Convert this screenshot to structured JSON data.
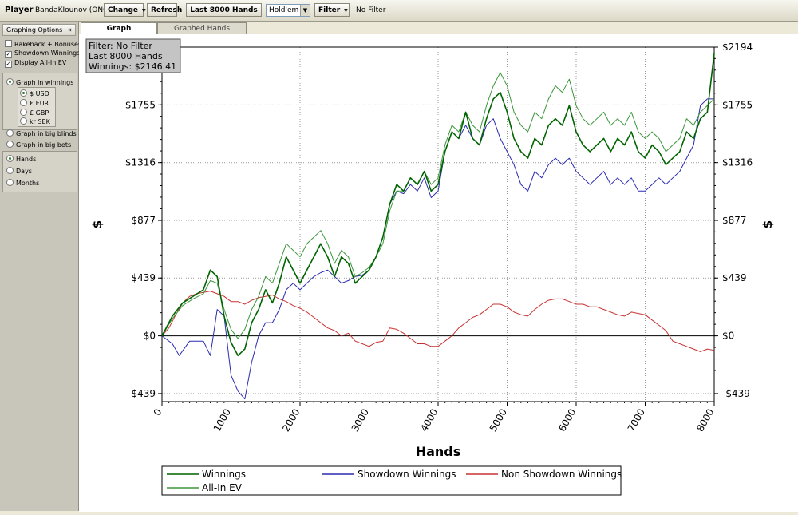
{
  "toolbar": {
    "player_label": "Player",
    "player_name": "BandaKIounov (ONG)",
    "change_label": "Change",
    "refresh_label": "Refresh",
    "hands_label": "Last 8000 Hands",
    "game_value": "Hold'em",
    "filter_label": "Filter",
    "filter_status": "No Filter"
  },
  "sidebar": {
    "header": "Graphing Options",
    "collapse_glyph": "«",
    "checks": [
      {
        "label": "Rakeback + Bonuses",
        "checked": false
      },
      {
        "label": "Showdown Winnings",
        "checked": true
      },
      {
        "label": "Display All-In EV",
        "checked": true
      }
    ],
    "graph_in_winnings": "Graph in winnings",
    "currencies": [
      {
        "label": "$ USD",
        "selected": true
      },
      {
        "label": "€ EUR",
        "selected": false
      },
      {
        "label": "£ GBP",
        "selected": false
      },
      {
        "label": "kr SEK",
        "selected": false
      }
    ],
    "graph_in_big_blinds": "Graph in big blinds",
    "graph_in_big_bets": "Graph in big bets",
    "x_units": [
      {
        "label": "Hands",
        "selected": true
      },
      {
        "label": "Days",
        "selected": false
      },
      {
        "label": "Months",
        "selected": false
      }
    ]
  },
  "tabs": [
    {
      "label": "Graph",
      "active": true
    },
    {
      "label": "Graphed Hands",
      "active": false
    }
  ],
  "chart_data": {
    "type": "line",
    "info_box": [
      "Filter: No Filter",
      "Last  8000 Hands",
      "Winnings: $2146.41"
    ],
    "xlabel": "Hands",
    "ylabel": "$",
    "xlim": [
      0,
      8000
    ],
    "ylim": [
      -500,
      2194
    ],
    "x_ticks": [
      0,
      1000,
      2000,
      3000,
      4000,
      5000,
      6000,
      7000,
      8000
    ],
    "x_tick_labels": [
      "0",
      "1000",
      "2000",
      "3000",
      "4000",
      "5000",
      "6000",
      "7000",
      "8000"
    ],
    "y_ticks": [
      -439,
      0,
      439,
      877,
      1316,
      1755,
      2194
    ],
    "y_tick_labels": [
      "-$439",
      "$0",
      "$439",
      "$877",
      "$1316",
      "$1755",
      "$2194"
    ],
    "grid": true,
    "legend_position": "bottom",
    "series": [
      {
        "name": "Winnings",
        "color": "#006400",
        "x": [
          0,
          150,
          300,
          450,
          600,
          700,
          800,
          900,
          1000,
          1100,
          1200,
          1300,
          1400,
          1500,
          1600,
          1700,
          1800,
          1900,
          2000,
          2100,
          2200,
          2300,
          2400,
          2500,
          2600,
          2700,
          2800,
          2900,
          3000,
          3100,
          3200,
          3300,
          3400,
          3500,
          3600,
          3700,
          3800,
          3900,
          4000,
          4100,
          4200,
          4300,
          4400,
          4500,
          4600,
          4700,
          4800,
          4900,
          5000,
          5100,
          5200,
          5300,
          5400,
          5500,
          5600,
          5700,
          5800,
          5900,
          6000,
          6100,
          6200,
          6300,
          6400,
          6500,
          6600,
          6700,
          6800,
          6900,
          7000,
          7100,
          7200,
          7300,
          7400,
          7500,
          7600,
          7700,
          7800,
          7900,
          8000
        ],
        "y": [
          0,
          150,
          250,
          300,
          350,
          500,
          450,
          150,
          -50,
          -150,
          -100,
          100,
          200,
          350,
          250,
          400,
          600,
          500,
          400,
          500,
          600,
          700,
          600,
          450,
          600,
          550,
          400,
          450,
          500,
          600,
          750,
          1000,
          1150,
          1100,
          1200,
          1150,
          1250,
          1100,
          1150,
          1400,
          1550,
          1500,
          1700,
          1500,
          1450,
          1650,
          1800,
          1850,
          1700,
          1500,
          1400,
          1350,
          1500,
          1450,
          1600,
          1650,
          1600,
          1750,
          1550,
          1450,
          1400,
          1450,
          1500,
          1400,
          1500,
          1450,
          1550,
          1400,
          1350,
          1450,
          1400,
          1300,
          1350,
          1400,
          1550,
          1500,
          1650,
          1700,
          2146
        ]
      },
      {
        "name": "Showdown Winnings",
        "color": "#2b2bb0",
        "x": [
          0,
          150,
          250,
          400,
          600,
          700,
          800,
          900,
          1000,
          1100,
          1200,
          1300,
          1400,
          1500,
          1600,
          1700,
          1800,
          1900,
          2000,
          2100,
          2200,
          2300,
          2400,
          2500,
          2600,
          2700,
          2800,
          2900,
          3000,
          3100,
          3200,
          3300,
          3400,
          3500,
          3600,
          3700,
          3800,
          3900,
          4000,
          4100,
          4200,
          4300,
          4400,
          4500,
          4600,
          4700,
          4800,
          4900,
          5000,
          5100,
          5200,
          5300,
          5400,
          5500,
          5600,
          5700,
          5800,
          5900,
          6000,
          6100,
          6200,
          6300,
          6400,
          6500,
          6600,
          6700,
          6800,
          6900,
          7000,
          7100,
          7200,
          7300,
          7400,
          7500,
          7600,
          7700,
          7800,
          7900,
          8000
        ],
        "y": [
          0,
          -60,
          -150,
          -40,
          -40,
          -150,
          200,
          150,
          -300,
          -420,
          -480,
          -200,
          0,
          100,
          100,
          200,
          350,
          400,
          350,
          400,
          450,
          480,
          500,
          450,
          400,
          420,
          450,
          460,
          500,
          600,
          750,
          1000,
          1100,
          1080,
          1150,
          1100,
          1200,
          1050,
          1100,
          1400,
          1550,
          1500,
          1600,
          1500,
          1450,
          1600,
          1650,
          1500,
          1400,
          1300,
          1150,
          1100,
          1250,
          1200,
          1300,
          1350,
          1300,
          1350,
          1250,
          1200,
          1150,
          1200,
          1250,
          1150,
          1200,
          1150,
          1200,
          1100,
          1100,
          1150,
          1200,
          1150,
          1200,
          1250,
          1350,
          1450,
          1750,
          1800,
          1800
        ]
      },
      {
        "name": "Non Showdown Winnings",
        "color": "#c83232",
        "x": [
          0,
          100,
          200,
          300,
          400,
          500,
          600,
          700,
          800,
          900,
          1000,
          1100,
          1200,
          1300,
          1400,
          1500,
          1600,
          1700,
          1800,
          1900,
          2000,
          2100,
          2200,
          2300,
          2400,
          2500,
          2600,
          2700,
          2800,
          2900,
          3000,
          3100,
          3200,
          3300,
          3400,
          3500,
          3600,
          3700,
          3800,
          3900,
          4000,
          4100,
          4200,
          4300,
          4400,
          4500,
          4600,
          4700,
          4800,
          4900,
          5000,
          5100,
          5200,
          5300,
          5400,
          5500,
          5600,
          5700,
          5800,
          5900,
          6000,
          6100,
          6200,
          6300,
          6400,
          6500,
          6600,
          6700,
          6800,
          6900,
          7000,
          7100,
          7200,
          7300,
          7400,
          7500,
          7600,
          7700,
          7800,
          7900,
          8000
        ],
        "y": [
          0,
          60,
          160,
          250,
          300,
          320,
          330,
          340,
          320,
          300,
          260,
          260,
          240,
          270,
          290,
          300,
          310,
          280,
          260,
          230,
          210,
          180,
          140,
          100,
          60,
          40,
          0,
          20,
          -40,
          -60,
          -80,
          -50,
          -40,
          60,
          50,
          20,
          -20,
          -60,
          -60,
          -80,
          -80,
          -40,
          0,
          60,
          100,
          140,
          160,
          200,
          240,
          240,
          220,
          180,
          160,
          150,
          200,
          240,
          270,
          280,
          280,
          260,
          240,
          240,
          220,
          220,
          200,
          180,
          160,
          150,
          180,
          170,
          160,
          120,
          80,
          40,
          -40,
          -60,
          -80,
          -100,
          -120,
          -100,
          -110
        ]
      },
      {
        "name": "All-In EV",
        "color": "#3c963c",
        "x": [
          0,
          150,
          300,
          450,
          600,
          700,
          800,
          900,
          1000,
          1100,
          1200,
          1300,
          1400,
          1500,
          1600,
          1700,
          1800,
          1900,
          2000,
          2100,
          2200,
          2300,
          2400,
          2500,
          2600,
          2700,
          2800,
          2900,
          3000,
          3100,
          3200,
          3300,
          3400,
          3500,
          3600,
          3700,
          3800,
          3900,
          4000,
          4100,
          4200,
          4300,
          4400,
          4500,
          4600,
          4700,
          4800,
          4900,
          5000,
          5100,
          5200,
          5300,
          5400,
          5500,
          5600,
          5700,
          5800,
          5900,
          6000,
          6100,
          6200,
          6300,
          6400,
          6500,
          6600,
          6700,
          6800,
          6900,
          7000,
          7100,
          7200,
          7300,
          7400,
          7500,
          7600,
          7700,
          7800,
          7900,
          8000
        ],
        "y": [
          0,
          130,
          230,
          280,
          320,
          420,
          400,
          200,
          50,
          -20,
          50,
          200,
          300,
          450,
          400,
          550,
          700,
          650,
          600,
          700,
          750,
          800,
          700,
          550,
          650,
          600,
          450,
          480,
          520,
          600,
          700,
          950,
          1100,
          1100,
          1200,
          1150,
          1250,
          1150,
          1200,
          1450,
          1600,
          1550,
          1700,
          1600,
          1550,
          1750,
          1900,
          2000,
          1900,
          1700,
          1600,
          1550,
          1700,
          1650,
          1800,
          1900,
          1850,
          1950,
          1750,
          1650,
          1600,
          1650,
          1700,
          1600,
          1650,
          1600,
          1700,
          1550,
          1500,
          1550,
          1500,
          1400,
          1450,
          1500,
          1650,
          1600,
          1700,
          1750,
          1800
        ]
      }
    ]
  }
}
